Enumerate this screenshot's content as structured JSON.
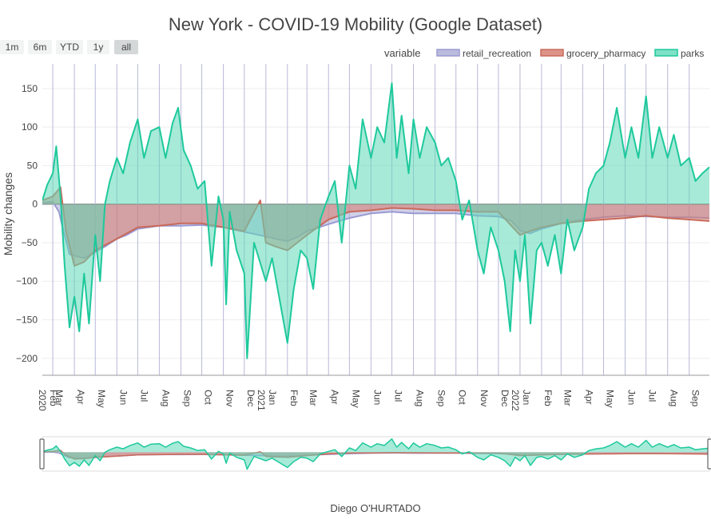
{
  "chart_data": {
    "type": "area",
    "title": "New York - COVID-19 Mobility (Google Dataset)",
    "xlabel": "Diego O'HURTADO",
    "ylabel": "Mobility changes",
    "ylim": [
      -222,
      182
    ],
    "y_ticks": [
      150,
      100,
      50,
      0,
      -50,
      -100,
      -150,
      -200
    ],
    "x_range": [
      "2020-02-15",
      "2022-09-30"
    ],
    "x_ticks": [
      {
        "date": "2020-02-01",
        "label": "Feb",
        "year": "2020"
      },
      {
        "date": "2020-03-01",
        "label": "Mar"
      },
      {
        "date": "2020-04-01",
        "label": "Apr"
      },
      {
        "date": "2020-05-01",
        "label": "May"
      },
      {
        "date": "2020-06-01",
        "label": "Jun"
      },
      {
        "date": "2020-07-01",
        "label": "Jul"
      },
      {
        "date": "2020-08-01",
        "label": "Aug"
      },
      {
        "date": "2020-09-01",
        "label": "Sep"
      },
      {
        "date": "2020-10-01",
        "label": "Oct"
      },
      {
        "date": "2020-11-01",
        "label": "Nov"
      },
      {
        "date": "2020-12-01",
        "label": "Dec"
      },
      {
        "date": "2021-01-01",
        "label": "Jan",
        "year": "2021"
      },
      {
        "date": "2021-02-01",
        "label": "Feb"
      },
      {
        "date": "2021-03-01",
        "label": "Mar"
      },
      {
        "date": "2021-04-01",
        "label": "Apr"
      },
      {
        "date": "2021-05-01",
        "label": "May"
      },
      {
        "date": "2021-06-01",
        "label": "Jun"
      },
      {
        "date": "2021-07-01",
        "label": "Jul"
      },
      {
        "date": "2021-08-01",
        "label": "Aug"
      },
      {
        "date": "2021-09-01",
        "label": "Sep"
      },
      {
        "date": "2021-10-01",
        "label": "Oct"
      },
      {
        "date": "2021-11-01",
        "label": "Nov"
      },
      {
        "date": "2021-12-01",
        "label": "Dec"
      },
      {
        "date": "2022-01-01",
        "label": "Jan",
        "year": "2022"
      },
      {
        "date": "2022-02-01",
        "label": "Feb"
      },
      {
        "date": "2022-03-01",
        "label": "Mar"
      },
      {
        "date": "2022-04-01",
        "label": "Apr"
      },
      {
        "date": "2022-05-01",
        "label": "May"
      },
      {
        "date": "2022-06-01",
        "label": "Jun"
      },
      {
        "date": "2022-07-01",
        "label": "Jul"
      },
      {
        "date": "2022-08-01",
        "label": "Aug"
      },
      {
        "date": "2022-09-01",
        "label": "Sep"
      }
    ],
    "legend": {
      "title": "variable",
      "position": "top-right"
    },
    "grid": true,
    "range_selector": {
      "buttons": [
        "1m",
        "6m",
        "YTD",
        "1y",
        "all"
      ],
      "active": "all"
    },
    "range_slider": true,
    "series": [
      {
        "name": "retail_recreation",
        "color": "#9a9ad2",
        "fill": "#aaaad6",
        "points": [
          [
            "2020-02-15",
            2
          ],
          [
            "2020-03-01",
            3
          ],
          [
            "2020-03-10",
            -10
          ],
          [
            "2020-03-15",
            -30
          ],
          [
            "2020-03-25",
            -65
          ],
          [
            "2020-04-15",
            -70
          ],
          [
            "2020-05-01",
            -62
          ],
          [
            "2020-05-15",
            -55
          ],
          [
            "2020-06-01",
            -45
          ],
          [
            "2020-06-15",
            -40
          ],
          [
            "2020-07-01",
            -32
          ],
          [
            "2020-08-01",
            -28
          ],
          [
            "2020-09-01",
            -28
          ],
          [
            "2020-10-01",
            -27
          ],
          [
            "2020-11-01",
            -30
          ],
          [
            "2020-12-01",
            -36
          ],
          [
            "2021-01-01",
            -42
          ],
          [
            "2021-01-15",
            -45
          ],
          [
            "2021-02-01",
            -48
          ],
          [
            "2021-02-15",
            -43
          ],
          [
            "2021-03-01",
            -35
          ],
          [
            "2021-04-01",
            -26
          ],
          [
            "2021-05-01",
            -18
          ],
          [
            "2021-06-01",
            -12
          ],
          [
            "2021-07-01",
            -10
          ],
          [
            "2021-08-01",
            -12
          ],
          [
            "2021-09-01",
            -12
          ],
          [
            "2021-10-01",
            -12
          ],
          [
            "2021-11-01",
            -15
          ],
          [
            "2021-12-01",
            -16
          ],
          [
            "2021-12-20",
            -22
          ],
          [
            "2022-01-01",
            -34
          ],
          [
            "2022-01-15",
            -38
          ],
          [
            "2022-02-01",
            -32
          ],
          [
            "2022-03-01",
            -25
          ],
          [
            "2022-04-01",
            -20
          ],
          [
            "2022-05-01",
            -17
          ],
          [
            "2022-06-01",
            -15
          ],
          [
            "2022-07-01",
            -16
          ],
          [
            "2022-08-01",
            -17
          ],
          [
            "2022-09-01",
            -17
          ],
          [
            "2022-09-30",
            -18
          ]
        ]
      },
      {
        "name": "grocery_pharmacy",
        "color": "#c96a5a",
        "fill": "#d5786a",
        "points": [
          [
            "2020-02-15",
            5
          ],
          [
            "2020-03-01",
            10
          ],
          [
            "2020-03-12",
            22
          ],
          [
            "2020-03-20",
            -35
          ],
          [
            "2020-04-01",
            -80
          ],
          [
            "2020-04-15",
            -75
          ],
          [
            "2020-05-01",
            -60
          ],
          [
            "2020-06-01",
            -45
          ],
          [
            "2020-07-01",
            -30
          ],
          [
            "2020-08-01",
            -28
          ],
          [
            "2020-09-01",
            -25
          ],
          [
            "2020-10-01",
            -25
          ],
          [
            "2020-11-01",
            -30
          ],
          [
            "2020-12-01",
            -35
          ],
          [
            "2020-12-24",
            5
          ],
          [
            "2021-01-01",
            -50
          ],
          [
            "2021-01-15",
            -55
          ],
          [
            "2021-02-01",
            -60
          ],
          [
            "2021-02-15",
            -50
          ],
          [
            "2021-03-01",
            -40
          ],
          [
            "2021-04-01",
            -20
          ],
          [
            "2021-05-01",
            -10
          ],
          [
            "2021-06-01",
            -8
          ],
          [
            "2021-07-01",
            -5
          ],
          [
            "2021-08-01",
            -6
          ],
          [
            "2021-09-01",
            -8
          ],
          [
            "2021-10-01",
            -8
          ],
          [
            "2021-11-01",
            -10
          ],
          [
            "2021-12-01",
            -10
          ],
          [
            "2022-01-01",
            -40
          ],
          [
            "2022-01-15",
            -35
          ],
          [
            "2022-02-01",
            -30
          ],
          [
            "2022-03-01",
            -25
          ],
          [
            "2022-04-01",
            -22
          ],
          [
            "2022-05-01",
            -20
          ],
          [
            "2022-06-01",
            -18
          ],
          [
            "2022-07-01",
            -15
          ],
          [
            "2022-08-01",
            -18
          ],
          [
            "2022-09-01",
            -20
          ],
          [
            "2022-09-30",
            -22
          ]
        ]
      },
      {
        "name": "parks",
        "color": "#1ec99c",
        "fill": "#5fd9b8",
        "points": [
          [
            "2020-02-15",
            5
          ],
          [
            "2020-02-22",
            25
          ],
          [
            "2020-03-01",
            40
          ],
          [
            "2020-03-06",
            75
          ],
          [
            "2020-03-12",
            10
          ],
          [
            "2020-03-18",
            -80
          ],
          [
            "2020-03-25",
            -160
          ],
          [
            "2020-04-01",
            -120
          ],
          [
            "2020-04-08",
            -165
          ],
          [
            "2020-04-15",
            -90
          ],
          [
            "2020-04-22",
            -155
          ],
          [
            "2020-05-01",
            -40
          ],
          [
            "2020-05-08",
            -100
          ],
          [
            "2020-05-15",
            0
          ],
          [
            "2020-05-22",
            30
          ],
          [
            "2020-06-01",
            60
          ],
          [
            "2020-06-10",
            40
          ],
          [
            "2020-06-20",
            80
          ],
          [
            "2020-07-01",
            110
          ],
          [
            "2020-07-10",
            60
          ],
          [
            "2020-07-20",
            95
          ],
          [
            "2020-08-01",
            100
          ],
          [
            "2020-08-10",
            60
          ],
          [
            "2020-08-20",
            105
          ],
          [
            "2020-08-28",
            125
          ],
          [
            "2020-09-05",
            70
          ],
          [
            "2020-09-15",
            50
          ],
          [
            "2020-09-25",
            20
          ],
          [
            "2020-10-05",
            30
          ],
          [
            "2020-10-15",
            -80
          ],
          [
            "2020-10-25",
            10
          ],
          [
            "2020-11-01",
            -20
          ],
          [
            "2020-11-05",
            -130
          ],
          [
            "2020-11-10",
            -10
          ],
          [
            "2020-11-20",
            -60
          ],
          [
            "2020-12-01",
            -90
          ],
          [
            "2020-12-05",
            -200
          ],
          [
            "2020-12-15",
            -50
          ],
          [
            "2021-01-01",
            -100
          ],
          [
            "2021-01-10",
            -70
          ],
          [
            "2021-01-20",
            -120
          ],
          [
            "2021-02-01",
            -180
          ],
          [
            "2021-02-10",
            -110
          ],
          [
            "2021-02-20",
            -60
          ],
          [
            "2021-03-01",
            -70
          ],
          [
            "2021-03-10",
            -110
          ],
          [
            "2021-03-20",
            -20
          ],
          [
            "2021-04-01",
            10
          ],
          [
            "2021-04-10",
            30
          ],
          [
            "2021-04-20",
            -50
          ],
          [
            "2021-05-01",
            50
          ],
          [
            "2021-05-10",
            20
          ],
          [
            "2021-05-20",
            110
          ],
          [
            "2021-06-01",
            60
          ],
          [
            "2021-06-10",
            100
          ],
          [
            "2021-06-20",
            80
          ],
          [
            "2021-07-01",
            157
          ],
          [
            "2021-07-08",
            60
          ],
          [
            "2021-07-15",
            115
          ],
          [
            "2021-07-25",
            40
          ],
          [
            "2021-08-01",
            110
          ],
          [
            "2021-08-10",
            60
          ],
          [
            "2021-08-20",
            100
          ],
          [
            "2021-09-01",
            80
          ],
          [
            "2021-09-10",
            50
          ],
          [
            "2021-09-20",
            60
          ],
          [
            "2021-10-01",
            30
          ],
          [
            "2021-10-10",
            -20
          ],
          [
            "2021-10-20",
            5
          ],
          [
            "2021-11-01",
            -60
          ],
          [
            "2021-11-10",
            -90
          ],
          [
            "2021-11-20",
            -30
          ],
          [
            "2021-12-01",
            -60
          ],
          [
            "2021-12-10",
            -100
          ],
          [
            "2021-12-18",
            -165
          ],
          [
            "2021-12-25",
            -60
          ],
          [
            "2022-01-01",
            -100
          ],
          [
            "2022-01-08",
            -40
          ],
          [
            "2022-01-16",
            -155
          ],
          [
            "2022-01-25",
            -60
          ],
          [
            "2022-02-01",
            -50
          ],
          [
            "2022-02-10",
            -80
          ],
          [
            "2022-02-20",
            -40
          ],
          [
            "2022-03-01",
            -90
          ],
          [
            "2022-03-10",
            -20
          ],
          [
            "2022-03-20",
            -60
          ],
          [
            "2022-04-01",
            -30
          ],
          [
            "2022-04-10",
            20
          ],
          [
            "2022-04-20",
            40
          ],
          [
            "2022-05-01",
            50
          ],
          [
            "2022-05-10",
            80
          ],
          [
            "2022-05-20",
            125
          ],
          [
            "2022-06-01",
            60
          ],
          [
            "2022-06-10",
            100
          ],
          [
            "2022-06-20",
            60
          ],
          [
            "2022-07-01",
            140
          ],
          [
            "2022-07-10",
            60
          ],
          [
            "2022-07-20",
            100
          ],
          [
            "2022-08-01",
            60
          ],
          [
            "2022-08-10",
            90
          ],
          [
            "2022-08-20",
            50
          ],
          [
            "2022-09-01",
            60
          ],
          [
            "2022-09-10",
            30
          ],
          [
            "2022-09-20",
            40
          ],
          [
            "2022-09-30",
            48
          ]
        ]
      }
    ]
  }
}
